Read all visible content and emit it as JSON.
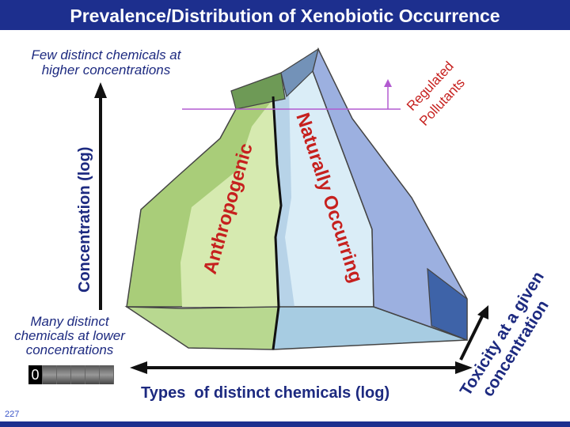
{
  "slide": {
    "title": "Prevalence/Distribution of Xenobiotic Occurrence",
    "number": "227"
  },
  "labels": {
    "few_line1": "Few distinct chemicals at",
    "few_line2": "higher concentrations",
    "many_line1": "Many distinct",
    "many_line2": "chemicals at lower",
    "many_line3": "concentrations",
    "y_axis": "Concentration (log)",
    "x_axis": "Types  of distinct chemicals (log)",
    "toxicity_line1": "Toxicity at a given",
    "toxicity_line2": "concentration",
    "regulated_line1": "Regulated",
    "regulated_line2": "Pollutants",
    "anthropogenic": "Anthropogenic",
    "naturally": "Naturally Occurring"
  },
  "colors": {
    "header": "#1d2f8e",
    "label_blue": "#1d2a80",
    "region_red": "#c6201e",
    "anthropogenic_green": "#bcd98c",
    "natural_blue": "#d4e8f4",
    "side_blue": "#98aede"
  },
  "icons": {
    "filmstrip_first": "0"
  }
}
